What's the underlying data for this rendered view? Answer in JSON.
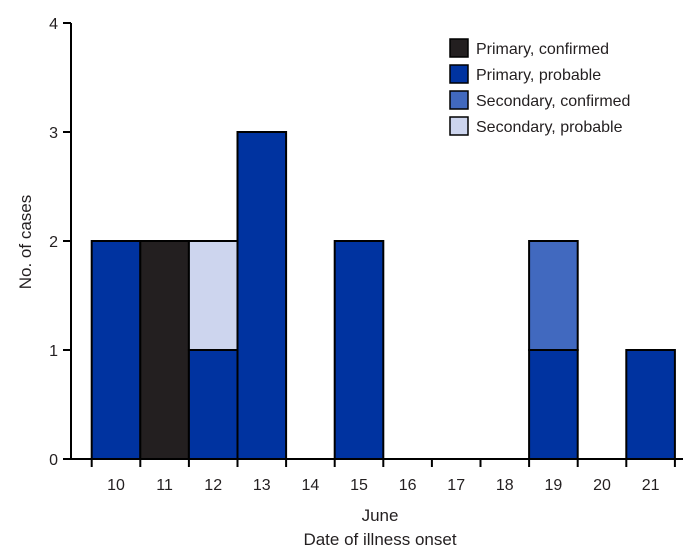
{
  "chart_data": {
    "type": "bar",
    "stacked": true,
    "title": "",
    "xlabel": "Date of illness onset",
    "xlabel_sub": "June",
    "ylabel": "No. of cases",
    "ylim": [
      0,
      4
    ],
    "yticks": [
      "0",
      "1",
      "2",
      "3",
      "4"
    ],
    "categories": [
      "10",
      "11",
      "12",
      "13",
      "14",
      "15",
      "16",
      "17",
      "18",
      "19",
      "20",
      "21"
    ],
    "series": [
      {
        "name": "Primary, confirmed",
        "color": "#231f20",
        "values": [
          0,
          2,
          0,
          0,
          0,
          0,
          0,
          0,
          0,
          0,
          0,
          0
        ]
      },
      {
        "name": "Primary, probable",
        "color": "#0033a0",
        "values": [
          2,
          0,
          1,
          3,
          0,
          2,
          0,
          0,
          0,
          1,
          0,
          1
        ]
      },
      {
        "name": "Secondary, confirmed",
        "color": "#4169bf",
        "values": [
          0,
          0,
          0,
          0,
          0,
          0,
          0,
          0,
          0,
          1,
          0,
          0
        ]
      },
      {
        "name": "Secondary, probable",
        "color": "#cdd5ee",
        "values": [
          0,
          0,
          1,
          0,
          0,
          0,
          0,
          0,
          0,
          0,
          0,
          0
        ]
      }
    ],
    "legend_position": "top-right",
    "grid": false
  }
}
